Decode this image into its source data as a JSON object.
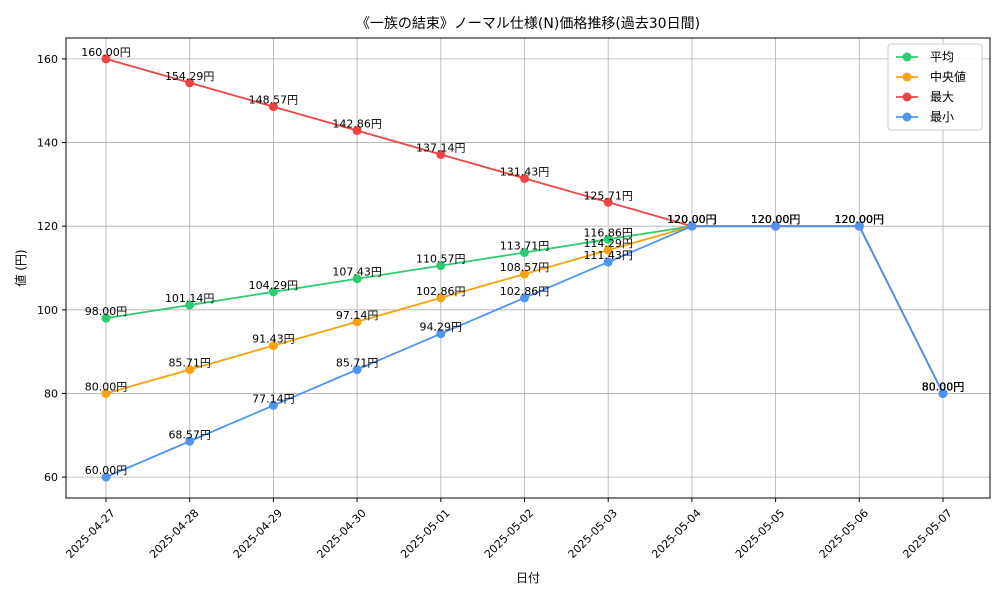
{
  "chart_data": {
    "type": "line",
    "title": "《一族の結束》ノーマル仕様(N)価格推移(過去30日間)",
    "xlabel": "日付",
    "ylabel": "値 (円)",
    "ylim": [
      55,
      165
    ],
    "yticks": [
      60,
      80,
      100,
      120,
      140,
      160
    ],
    "grid": true,
    "legend_position": "top-right",
    "label_suffix": "円",
    "categories": [
      "2025-04-27",
      "2025-04-28",
      "2025-04-29",
      "2025-04-30",
      "2025-05-01",
      "2025-05-02",
      "2025-05-03",
      "2025-05-04",
      "2025-05-05",
      "2025-05-06",
      "2025-05-07"
    ],
    "series": [
      {
        "name": "平均",
        "color": "#2ecc71",
        "values": [
          98.0,
          101.14,
          104.29,
          107.43,
          110.57,
          113.71,
          116.86,
          120.0,
          120.0,
          120.0,
          80.0
        ]
      },
      {
        "name": "中央値",
        "color": "#f5a30e",
        "values": [
          80.0,
          85.71,
          91.43,
          97.14,
          102.86,
          108.57,
          114.29,
          120.0,
          120.0,
          120.0,
          80.0
        ]
      },
      {
        "name": "最大",
        "color": "#ef4444",
        "values": [
          160.0,
          154.29,
          148.57,
          142.86,
          137.14,
          131.43,
          125.71,
          120.0,
          120.0,
          120.0,
          80.0
        ]
      },
      {
        "name": "最小",
        "color": "#4f94ef",
        "values": [
          60.0,
          68.57,
          77.14,
          85.71,
          94.29,
          102.86,
          111.43,
          120.0,
          120.0,
          120.0,
          80.0
        ]
      }
    ]
  }
}
